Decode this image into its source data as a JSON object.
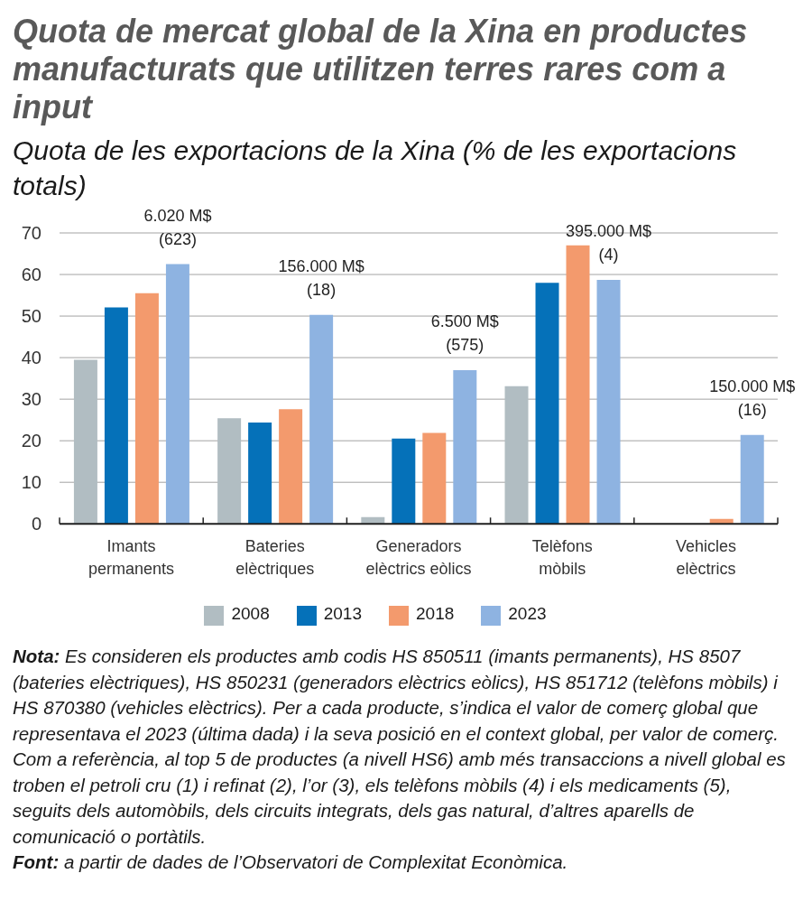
{
  "chart_data": {
    "type": "bar",
    "title": "Quota de mercat global de la Xina en productes manufacturats que utilitzen terres rares com a input",
    "subtitle": "Quota de les exportacions de la Xina (% de les exportacions totals)",
    "categories": [
      "Imants permanents",
      "Bateries elèctriques",
      "Generadors elèctrics eòlics",
      "Telèfons mòbils",
      "Vehicles elèctrics"
    ],
    "series": [
      {
        "name": "2008",
        "color": "#b1bdc2",
        "values": [
          39.5,
          25.4,
          1.6,
          33.1,
          null
        ]
      },
      {
        "name": "2013",
        "color": "#0571b9",
        "values": [
          52.1,
          24.4,
          20.5,
          58.0,
          null
        ]
      },
      {
        "name": "2018",
        "color": "#f39a6d",
        "values": [
          55.5,
          27.6,
          21.9,
          67.0,
          1.2
        ]
      },
      {
        "name": "2023",
        "color": "#8eb3e1",
        "values": [
          62.5,
          50.3,
          37.0,
          58.7,
          21.4
        ]
      }
    ],
    "ylim": [
      0,
      70
    ],
    "yticks": [
      0,
      10,
      20,
      30,
      40,
      50,
      60,
      70
    ],
    "grid": "y",
    "legend": "bottom",
    "annotations": [
      "6.020 M$ (623)",
      "156.000 M$ (18)",
      "6.500 M$ (575)",
      "395.000 M$ (4)",
      "150.000 M$ (16)",
      "Nota: Es consideren els productes amb codis HS 850511 (imants permanents), HS 8507 (bateries elèctriques), HS 850231 (generadors elèctrics eòlics), HS 851712 (telèfons mòbils) i HS 870380 (vehicles elèctrics). Per a cada producte, s’indica el valor de comerç global que representava el 2023 (última dada) i la seva posició en el context global, per valor de comerç. Com a referència, al top 5 de productes (a nivell HS6) amb més transaccions a nivell global es troben el petroli cru (1) i refinat (2), l’or (3), els telèfons mòbils (4) i els medicaments (5), seguits dels automòbils, dels circuits integrats, dels gas natural, d’altres aparells de comunicació o portàtils.",
      "Font: a partir de dades de l’Observatori de Complexitat Econòmica."
    ]
  }
}
